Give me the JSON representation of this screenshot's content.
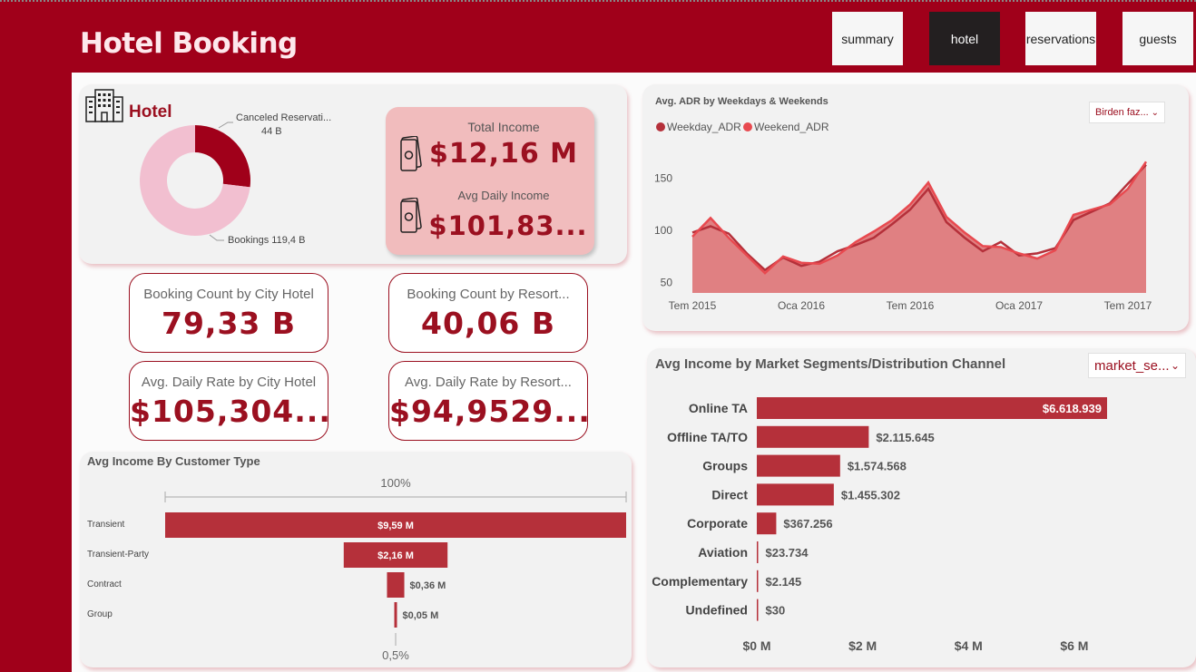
{
  "header": {
    "title": "Hotel Booking"
  },
  "nav": [
    {
      "label": "summary",
      "active": false
    },
    {
      "label": "hotel",
      "active": true
    },
    {
      "label": "reservations",
      "active": false
    },
    {
      "label": "guests",
      "active": false
    }
  ],
  "colors": {
    "brand": "#a0001a",
    "accent": "#b5303a",
    "series1": "#b5303a",
    "series2": "#e8494f",
    "area": "#e08082",
    "donut_light": "#f2bfd0",
    "income_card": "#f1bcbd"
  },
  "hotel_card": {
    "title": "Hotel",
    "icon": "hotel-building-icon",
    "income": {
      "label": "Total Income",
      "value": "$12,16 M",
      "icon": "money-icon"
    },
    "daily": {
      "label": "Avg Daily Income",
      "value": "$101,83...",
      "icon": "money-icon"
    }
  },
  "kpis": [
    {
      "label": "Booking Count by City Hotel",
      "value": "79,33 B"
    },
    {
      "label": "Booking Count by Resort...",
      "value": "40,06 B"
    },
    {
      "label": "Avg. Daily Rate by City Hotel",
      "value": "$105,304..."
    },
    {
      "label": "Avg. Daily Rate by Resort...",
      "value": "$94,9529..."
    }
  ],
  "adr_filter": "Birden faz...",
  "segment_filter": "market_se...",
  "chart_data": [
    {
      "type": "pie",
      "title": "",
      "slices": [
        {
          "label": "Canceled Reservati...",
          "display": "44 B",
          "value": 44
        },
        {
          "label": "Bookings",
          "display": "119,4 B",
          "value": 119.4
        }
      ]
    },
    {
      "type": "area",
      "title": "Avg. ADR by Weekdays & Weekends",
      "legend_position": "top-left",
      "x_ticks": [
        "Tem 2015",
        "Oca 2016",
        "Tem 2016",
        "Oca 2017",
        "Tem 2017"
      ],
      "y_ticks": [
        50,
        100,
        150
      ],
      "ylim": [
        40,
        175
      ],
      "xlim": [
        "2015-07",
        "2017-08"
      ],
      "x": [
        "2015-07",
        "2015-08",
        "2015-09",
        "2015-10",
        "2015-11",
        "2015-12",
        "2016-01",
        "2016-02",
        "2016-03",
        "2016-04",
        "2016-05",
        "2016-06",
        "2016-07",
        "2016-08",
        "2016-09",
        "2016-10",
        "2016-11",
        "2016-12",
        "2017-01",
        "2017-02",
        "2017-03",
        "2017-04",
        "2017-05",
        "2017-06",
        "2017-07",
        "2017-08"
      ],
      "series": [
        {
          "name": "Weekday_ADR",
          "values": [
            98,
            104,
            97,
            78,
            62,
            74,
            66,
            70,
            80,
            86,
            93,
            106,
            120,
            140,
            108,
            93,
            80,
            89,
            76,
            78,
            83,
            110,
            118,
            126,
            145,
            163
          ]
        },
        {
          "name": "Weekend_ADR",
          "values": [
            94,
            112,
            93,
            76,
            59,
            75,
            69,
            68,
            76,
            89,
            99,
            110,
            125,
            146,
            113,
            98,
            85,
            84,
            78,
            73,
            81,
            115,
            120,
            125,
            140,
            166
          ]
        }
      ]
    },
    {
      "type": "bar",
      "title": "Avg Income By Customer Type",
      "orientation": "funnel",
      "top_label": "100%",
      "bottom_label": "0,5%",
      "categories": [
        "Transient",
        "Transient-Party",
        "Contract",
        "Group"
      ],
      "values": [
        9.59,
        2.16,
        0.36,
        0.05
      ],
      "labels": [
        "$9,59 M",
        "$2,16 M",
        "$0,36 M",
        "$0,05 M"
      ],
      "unit": "M"
    },
    {
      "type": "bar",
      "title": "Avg Income by Market Segments/Distribution Channel",
      "orientation": "horizontal",
      "categories": [
        "Online TA",
        "Offline TA/TO",
        "Groups",
        "Direct",
        "Corporate",
        "Aviation",
        "Complementary",
        "Undefined"
      ],
      "values": [
        6618939,
        2115645,
        1574568,
        1455302,
        367256,
        23734,
        2145,
        30
      ],
      "labels": [
        "$6.618.939",
        "$2.115.645",
        "$1.574.568",
        "$1.455.302",
        "$367.256",
        "$23.734",
        "$2.145",
        "$30"
      ],
      "x_ticks": [
        "$0 M",
        "$2 M",
        "$4 M",
        "$6 M"
      ],
      "xlim": [
        0,
        6700000
      ]
    }
  ]
}
